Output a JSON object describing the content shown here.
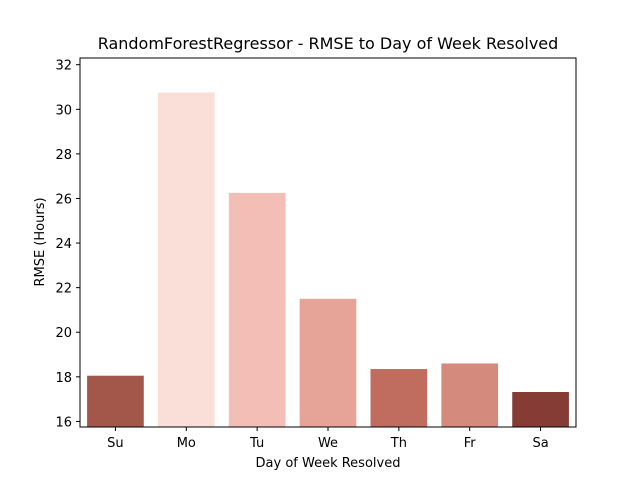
{
  "chart_data": {
    "type": "bar",
    "title": "RandomForestRegressor - RMSE to Day of Week Resolved",
    "xlabel": "Day of Week Resolved",
    "ylabel": "RMSE (Hours)",
    "categories": [
      "Su",
      "Mo",
      "Tu",
      "We",
      "Th",
      "Fr",
      "Sa"
    ],
    "values": [
      18.05,
      30.75,
      26.25,
      21.5,
      18.35,
      18.6,
      17.32
    ],
    "colors": [
      "#a3564a",
      "#fadfd9",
      "#f2beb6",
      "#e6a398",
      "#c06c5e",
      "#d48a7c",
      "#843c34"
    ],
    "ylim": [
      15.75,
      32.3
    ],
    "yticks": [
      16,
      18,
      20,
      22,
      24,
      26,
      28,
      30,
      32
    ],
    "grid": false,
    "legend": "none"
  }
}
